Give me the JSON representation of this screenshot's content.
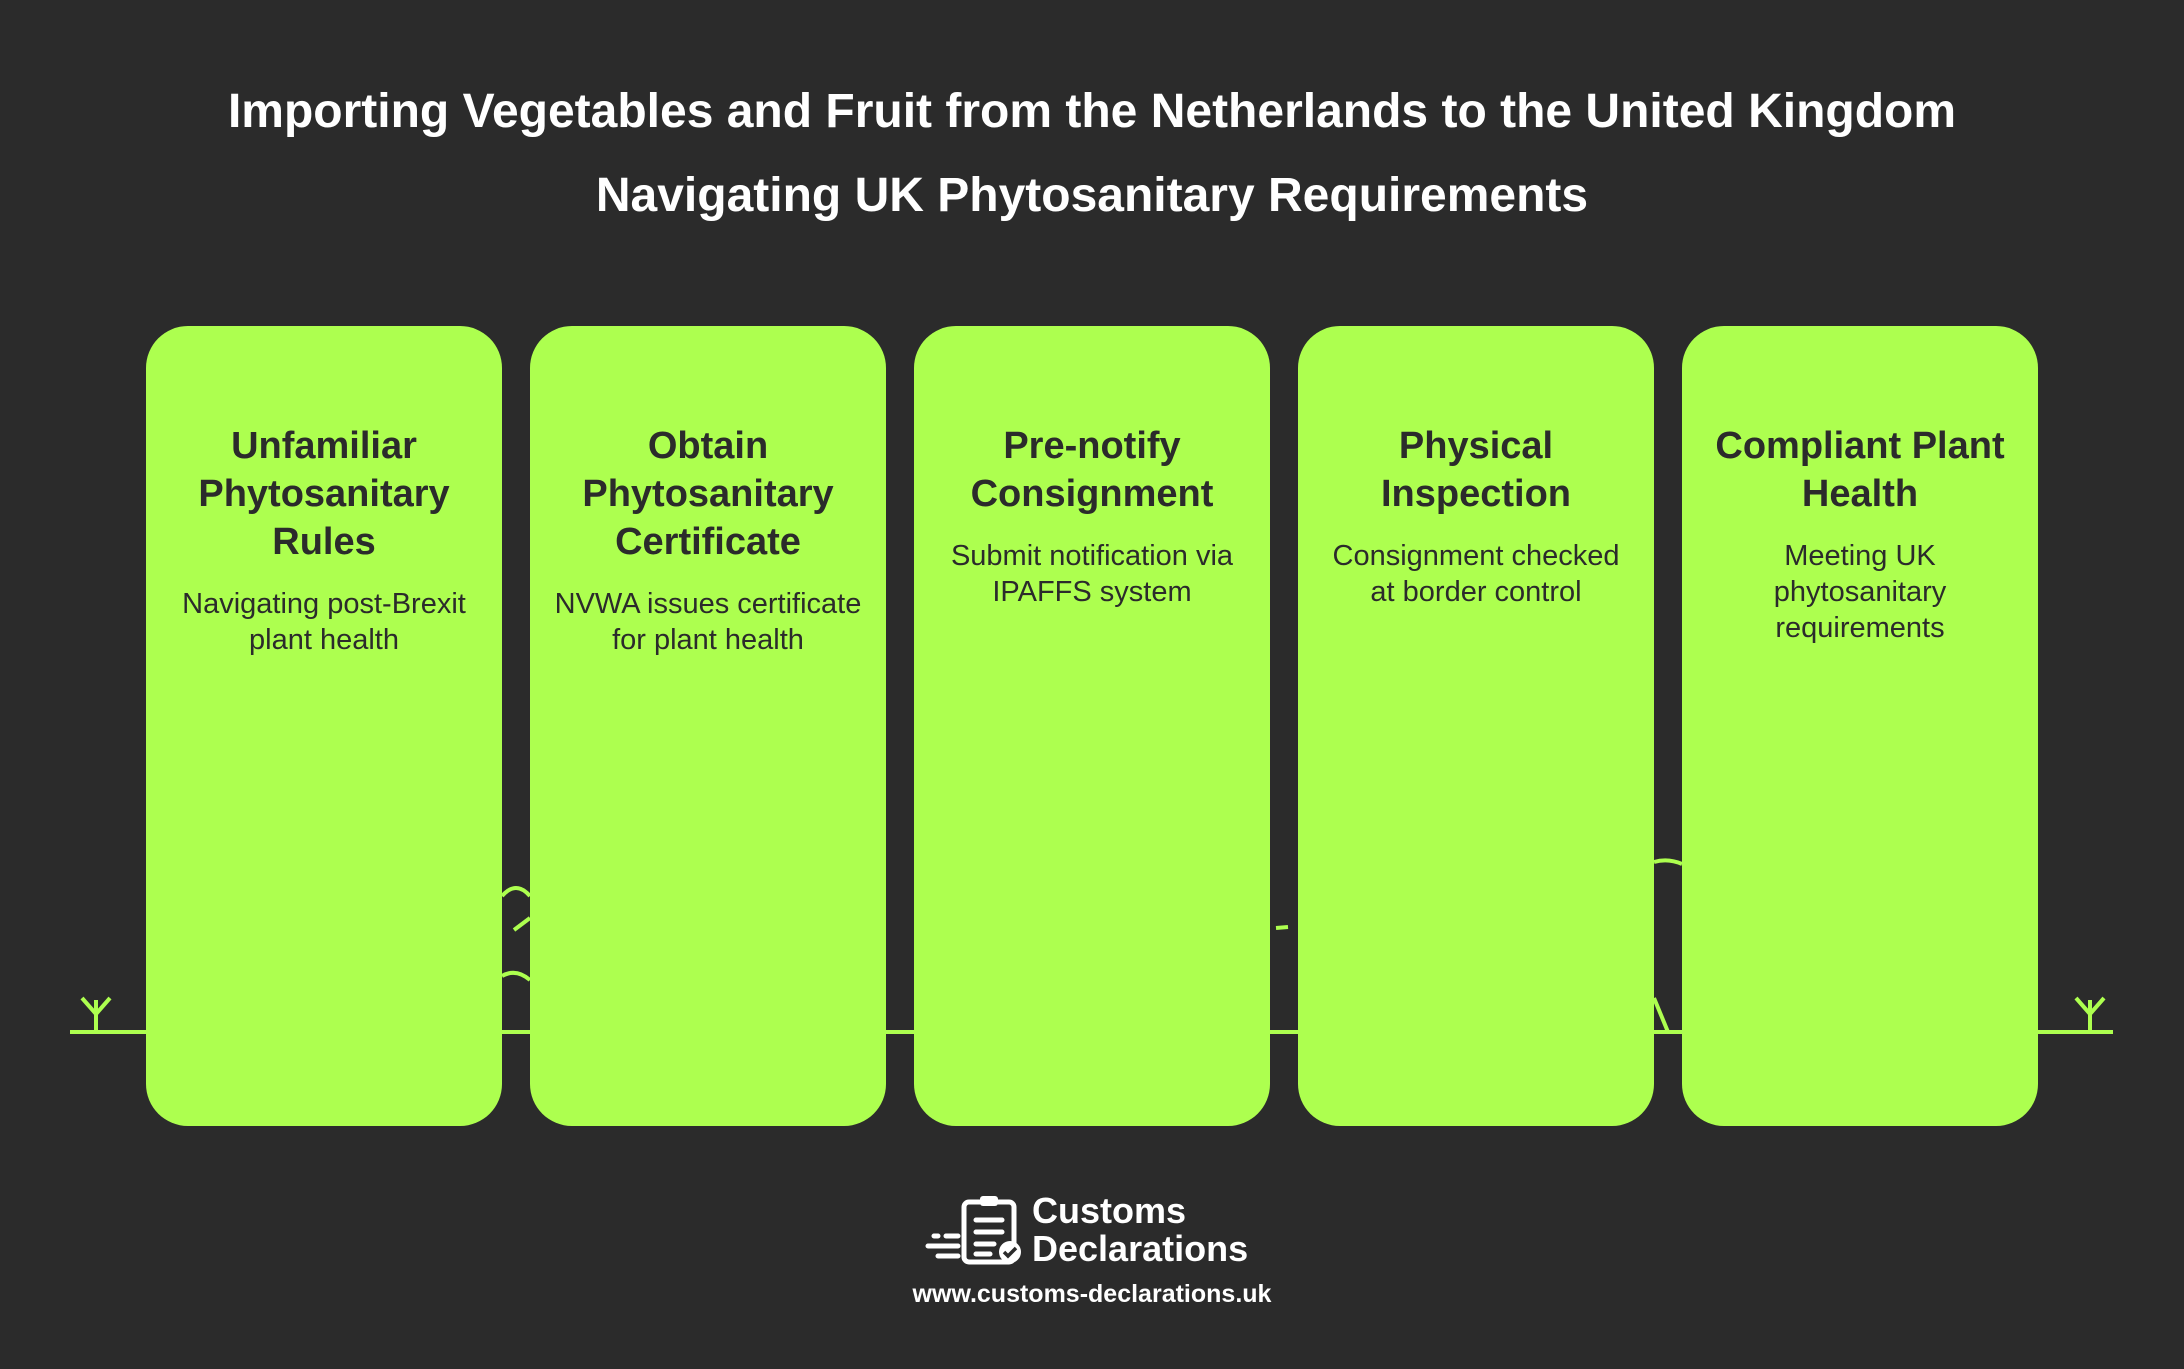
{
  "header": {
    "title": "Importing Vegetables and Fruit from the Netherlands to the United Kingdom",
    "subtitle": "Navigating UK Phytosanitary Requirements"
  },
  "colors": {
    "background": "#2b2b2b",
    "accent": "#adff4f",
    "text_dark": "#2b2b2b"
  },
  "steps": [
    {
      "title": "Unfamiliar Phytosanitary Rules",
      "description": "Navigating post-Brexit plant health"
    },
    {
      "title": "Obtain Phytosanitary Certificate",
      "description": "NVWA issues certificate for plant health"
    },
    {
      "title": "Pre-notify Consignment",
      "description": "Submit notification via IPAFFS system"
    },
    {
      "title": "Physical Inspection",
      "description": "Consignment checked at border control"
    },
    {
      "title": "Compliant Plant Health",
      "description": "Meeting UK phytosanitary requirements"
    }
  ],
  "footer": {
    "logo_line1": "Customs",
    "logo_line2": "Declarations",
    "logo_icon": "clipboard-check-icon",
    "url": "www.customs-declarations.uk"
  }
}
